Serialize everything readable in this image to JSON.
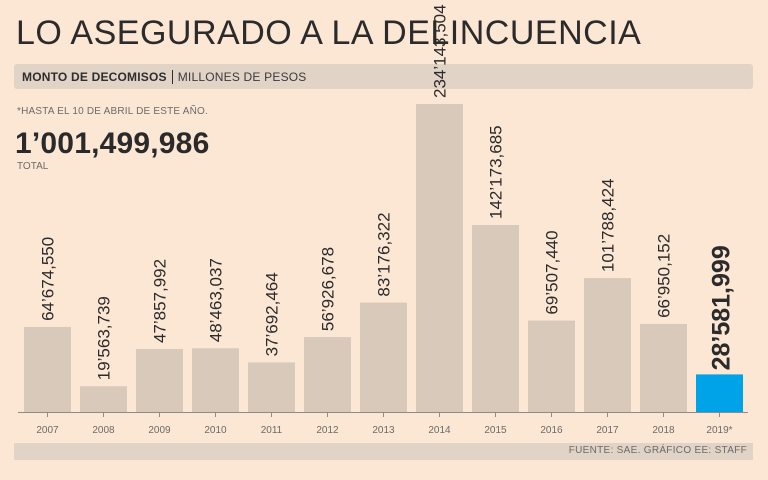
{
  "title": "LO ASEGURADO A LA DELINCUENCIA",
  "subtitle": {
    "bold": "MONTO DE DECOMISOS",
    "light": "MILLONES DE PESOS"
  },
  "note": "*HASTA EL 10 DE ABRIL DE ESTE AÑO.",
  "total": {
    "value": "1’001,499,986",
    "label": "TOTAL"
  },
  "source": "FUENTE: SAE. GRÁFICO EE: STAFF",
  "colors": {
    "bar": "#d9c9bb",
    "highlight": "#00a3e8",
    "axis": "#8c8c8c"
  },
  "chart_data": {
    "type": "bar",
    "title": "Monto de decomisos",
    "ylabel": "Millones de pesos",
    "ylim": [
      0,
      240000000
    ],
    "categories": [
      "2007",
      "2008",
      "2009",
      "2010",
      "2011",
      "2012",
      "2013",
      "2014",
      "2015",
      "2016",
      "2017",
      "2018",
      "2019*"
    ],
    "values": [
      64674550,
      19563739,
      47857992,
      48463037,
      37692464,
      56926678,
      83176322,
      234143504,
      142173685,
      69507440,
      101788424,
      66950152,
      28581999
    ],
    "labels": [
      "64’674,550",
      "19’563,739",
      "47’857,992",
      "48’463,037",
      "37’692,464",
      "56’926,678",
      "83’176,322",
      "234’143,504",
      "142’173,685",
      "69’507,440",
      "101’788,424",
      "66’950,152",
      "28’581,999"
    ],
    "highlight_index": 12
  }
}
